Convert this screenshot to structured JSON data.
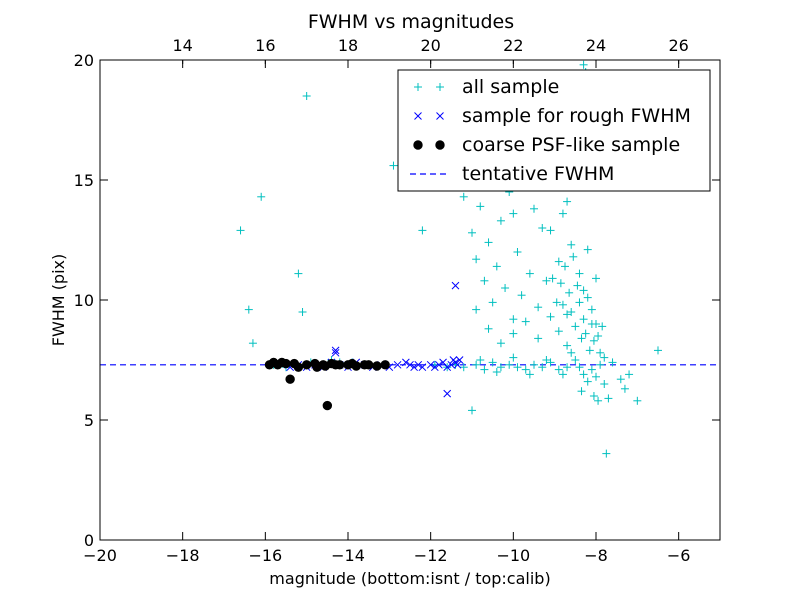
{
  "chart_data": {
    "type": "scatter",
    "title": "FWHM vs magnitudes",
    "xlabel": "magnitude (bottom:isnt / top:calib)",
    "ylabel": "FWHM (pix)",
    "xlim": [
      -20,
      -5
    ],
    "ylim": [
      0,
      20
    ],
    "x_ticks": [
      -20,
      -18,
      -16,
      -14,
      -12,
      -10,
      -8,
      -6
    ],
    "x_tick_labels": [
      "−20",
      "−18",
      "−16",
      "−14",
      "−12",
      "−10",
      "−8",
      "−6"
    ],
    "y_ticks": [
      0,
      5,
      10,
      15,
      20
    ],
    "y_tick_labels": [
      "0",
      "5",
      "10",
      "15",
      "20"
    ],
    "top_axis": {
      "ticks": [
        14,
        16,
        18,
        20,
        22,
        24,
        26
      ],
      "tick_labels": [
        "14",
        "16",
        "18",
        "20",
        "22",
        "24",
        "26"
      ],
      "offset": 32
    },
    "grid": false,
    "legend_position": "top-right",
    "colors": {
      "all_sample": "#00bfbf",
      "rough_fwhm": "#0000ff",
      "psf_like": "#000000",
      "tentative": "#0000ff"
    },
    "series": [
      {
        "name": "all sample",
        "marker": "plus",
        "points": [
          [
            -16.6,
            12.9
          ],
          [
            -16.4,
            9.6
          ],
          [
            -16.3,
            8.2
          ],
          [
            -16.1,
            14.3
          ],
          [
            -15.2,
            11.1
          ],
          [
            -15.1,
            9.5
          ],
          [
            -15.0,
            18.5
          ],
          [
            -14.4,
            7.5
          ],
          [
            -14.2,
            7.4
          ],
          [
            -13.9,
            7.4
          ],
          [
            -13.6,
            7.3
          ],
          [
            -12.9,
            15.6
          ],
          [
            -12.2,
            12.9
          ],
          [
            -11.9,
            7.3
          ],
          [
            -11.2,
            14.3
          ],
          [
            -11.0,
            5.4
          ],
          [
            -15.8,
            7.3
          ],
          [
            -15.5,
            7.2
          ],
          [
            -14.9,
            7.4
          ],
          [
            -11.6,
            7.2
          ],
          [
            -11.4,
            7.3
          ],
          [
            -11.2,
            7.2
          ],
          [
            -10.9,
            7.3
          ],
          [
            -10.7,
            7.1
          ],
          [
            -10.5,
            7.4
          ],
          [
            -10.3,
            7.2
          ],
          [
            -10.1,
            7.3
          ],
          [
            -9.9,
            7.2
          ],
          [
            -9.7,
            7.1
          ],
          [
            -9.5,
            7.3
          ],
          [
            -9.3,
            7.2
          ],
          [
            -9.1,
            7.4
          ],
          [
            -8.9,
            7.1
          ],
          [
            -8.7,
            7.2
          ],
          [
            -10.8,
            7.5
          ],
          [
            -10.4,
            7.0
          ],
          [
            -10.0,
            7.6
          ],
          [
            -9.6,
            6.9
          ],
          [
            -9.2,
            7.5
          ],
          [
            -8.8,
            6.9
          ],
          [
            -11.1,
            14.9
          ],
          [
            -11.0,
            12.8
          ],
          [
            -10.9,
            11.7
          ],
          [
            -10.8,
            13.9
          ],
          [
            -10.7,
            10.8
          ],
          [
            -10.6,
            12.4
          ],
          [
            -10.5,
            9.9
          ],
          [
            -10.4,
            11.4
          ],
          [
            -10.3,
            13.3
          ],
          [
            -10.2,
            10.5
          ],
          [
            -10.1,
            14.5
          ],
          [
            -10.0,
            9.2
          ],
          [
            -9.9,
            12.0
          ],
          [
            -9.8,
            10.2
          ],
          [
            -9.7,
            15.5
          ],
          [
            -9.6,
            11.1
          ],
          [
            -9.5,
            13.8
          ],
          [
            -9.4,
            9.7
          ],
          [
            -9.3,
            14.8
          ],
          [
            -9.2,
            10.8
          ],
          [
            -9.1,
            12.9
          ],
          [
            -9.0,
            16.2
          ],
          [
            -8.9,
            11.6
          ],
          [
            -8.8,
            13.6
          ],
          [
            -8.7,
            9.4
          ],
          [
            -8.6,
            12.3
          ],
          [
            -8.5,
            17.5
          ],
          [
            -8.4,
            11.1
          ],
          [
            -8.3,
            10.4
          ],
          [
            -8.2,
            12.1
          ],
          [
            -8.1,
            9.0
          ],
          [
            -8.0,
            10.9
          ],
          [
            -10.9,
            9.6
          ],
          [
            -10.6,
            8.8
          ],
          [
            -10.3,
            8.2
          ],
          [
            -10.0,
            8.6
          ],
          [
            -9.7,
            9.1
          ],
          [
            -9.4,
            8.4
          ],
          [
            -9.1,
            9.3
          ],
          [
            -8.9,
            8.7
          ],
          [
            -8.8,
            9.8
          ],
          [
            -8.7,
            8.1
          ],
          [
            -8.6,
            9.5
          ],
          [
            -8.5,
            8.9
          ],
          [
            -8.4,
            9.9
          ],
          [
            -8.35,
            8.4
          ],
          [
            -8.3,
            9.2
          ],
          [
            -8.25,
            8.6
          ],
          [
            -8.2,
            10.1
          ],
          [
            -8.15,
            7.9
          ],
          [
            -8.1,
            9.6
          ],
          [
            -8.05,
            8.3
          ],
          [
            -8.0,
            9.0
          ],
          [
            -7.95,
            8.5
          ],
          [
            -7.9,
            7.8
          ],
          [
            -7.85,
            8.9
          ],
          [
            -7.8,
            7.6
          ],
          [
            -8.45,
            10.6
          ],
          [
            -8.55,
            11.8
          ],
          [
            -8.65,
            10.3
          ],
          [
            -8.75,
            11.4
          ],
          [
            -8.85,
            10.7
          ],
          [
            -8.95,
            9.9
          ],
          [
            -9.05,
            10.9
          ],
          [
            -8.6,
            7.8
          ],
          [
            -8.5,
            7.5
          ],
          [
            -8.4,
            7.2
          ],
          [
            -8.3,
            6.9
          ],
          [
            -8.2,
            6.6
          ],
          [
            -8.1,
            7.1
          ],
          [
            -8.0,
            6.8
          ],
          [
            -7.9,
            7.3
          ],
          [
            -7.8,
            6.5
          ],
          [
            -8.35,
            6.2
          ],
          [
            -8.05,
            6.0
          ],
          [
            -7.95,
            5.8
          ],
          [
            -7.7,
            5.9
          ],
          [
            -7.75,
            3.6
          ],
          [
            -7.4,
            6.7
          ],
          [
            -7.3,
            6.3
          ],
          [
            -7.0,
            5.8
          ],
          [
            -6.5,
            7.9
          ],
          [
            -7.2,
            6.9
          ],
          [
            -7.6,
            7.4
          ],
          [
            -8.3,
            19.8
          ],
          [
            -8.25,
            19.5
          ],
          [
            -10.0,
            13.6
          ],
          [
            -9.3,
            13.0
          ],
          [
            -8.7,
            14.1
          ]
        ]
      },
      {
        "name": "sample for rough FWHM",
        "marker": "x",
        "points": [
          [
            -15.6,
            7.3
          ],
          [
            -15.4,
            7.2
          ],
          [
            -15.2,
            7.3
          ],
          [
            -15.0,
            7.2
          ],
          [
            -14.8,
            7.3
          ],
          [
            -14.6,
            7.2
          ],
          [
            -14.4,
            7.4
          ],
          [
            -14.3,
            7.8
          ],
          [
            -14.3,
            7.9
          ],
          [
            -14.2,
            7.3
          ],
          [
            -14.0,
            7.2
          ],
          [
            -13.8,
            7.4
          ],
          [
            -13.6,
            7.3
          ],
          [
            -13.4,
            7.2
          ],
          [
            -13.2,
            7.3
          ],
          [
            -13.0,
            7.2
          ],
          [
            -12.8,
            7.3
          ],
          [
            -12.6,
            7.4
          ],
          [
            -12.5,
            7.3
          ],
          [
            -12.4,
            7.2
          ],
          [
            -12.3,
            7.3
          ],
          [
            -12.2,
            7.2
          ],
          [
            -12.0,
            7.3
          ],
          [
            -11.9,
            7.2
          ],
          [
            -11.8,
            7.3
          ],
          [
            -11.7,
            7.4
          ],
          [
            -11.6,
            7.2
          ],
          [
            -11.5,
            7.3
          ],
          [
            -11.45,
            7.5
          ],
          [
            -11.4,
            7.4
          ],
          [
            -11.35,
            7.3
          ],
          [
            -11.3,
            7.5
          ],
          [
            -11.4,
            10.6
          ],
          [
            -11.6,
            6.1
          ]
        ]
      },
      {
        "name": "coarse PSF-like sample",
        "marker": "circle",
        "points": [
          [
            -15.7,
            7.3
          ],
          [
            -15.6,
            7.4
          ],
          [
            -15.5,
            7.35
          ],
          [
            -15.4,
            6.7
          ],
          [
            -15.3,
            7.35
          ],
          [
            -15.2,
            7.2
          ],
          [
            -15.0,
            7.3
          ],
          [
            -14.8,
            7.35
          ],
          [
            -14.75,
            7.2
          ],
          [
            -14.6,
            7.3
          ],
          [
            -14.55,
            7.25
          ],
          [
            -14.5,
            5.6
          ],
          [
            -14.4,
            7.35
          ],
          [
            -14.3,
            7.3
          ],
          [
            -14.2,
            7.3
          ],
          [
            -14.0,
            7.3
          ],
          [
            -13.9,
            7.35
          ],
          [
            -13.8,
            7.25
          ],
          [
            -13.6,
            7.3
          ],
          [
            -13.5,
            7.3
          ],
          [
            -13.3,
            7.25
          ],
          [
            -13.1,
            7.3
          ],
          [
            -15.9,
            7.3
          ],
          [
            -15.8,
            7.4
          ]
        ]
      }
    ],
    "reference_line": {
      "name": "tentative FWHM",
      "y": 7.3,
      "style": "dashed"
    }
  }
}
